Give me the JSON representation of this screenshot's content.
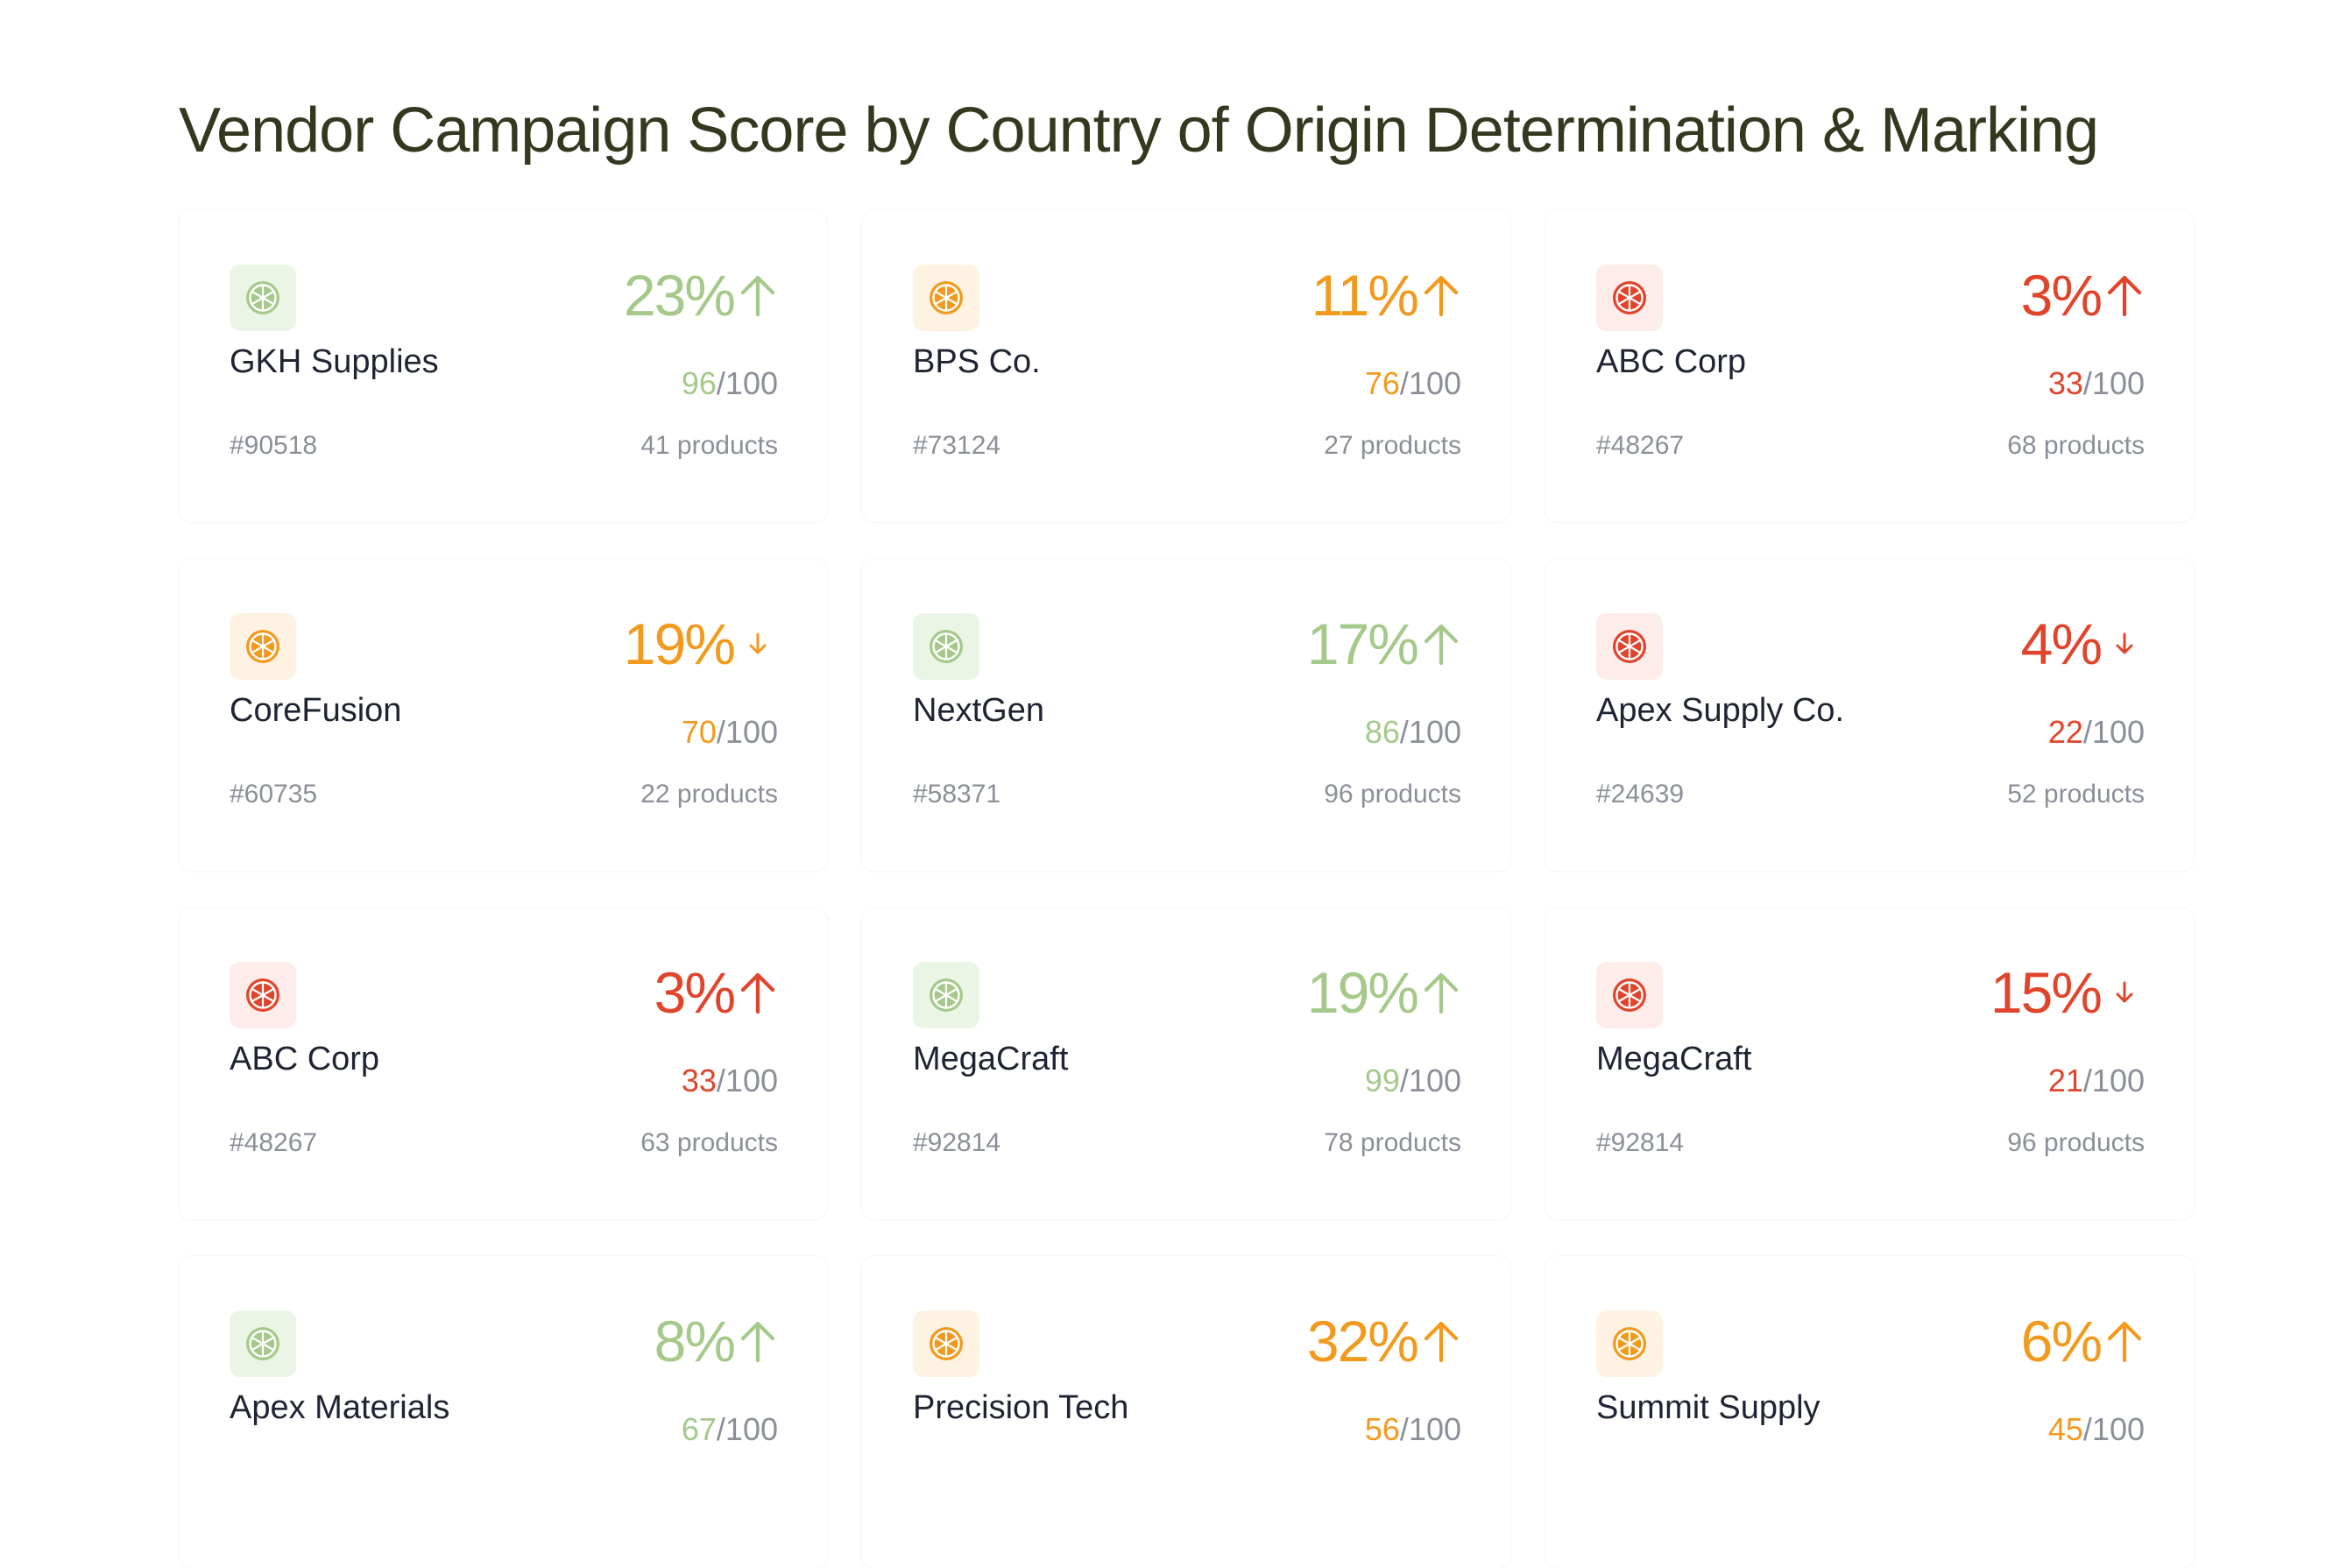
{
  "page": {
    "title": "Vendor Campaign Score by Country of Origin Determination & Marking"
  },
  "colors": {
    "good": "#a4c98a",
    "mid": "#f29a1e",
    "bad": "#e0452c",
    "good_bg": "#eaf5e6",
    "mid_bg": "#fef2e3",
    "bad_bg": "#fdecea"
  },
  "cards": [
    {
      "name": "GKH Supplies",
      "id": "#90518",
      "change": "23%",
      "trend": "up",
      "score": "96",
      "score_max": "/100",
      "products": "41 products",
      "tone": "good",
      "icon": "citrus-slice-icon"
    },
    {
      "name": "BPS Co.",
      "id": "#73124",
      "change": "11%",
      "trend": "up",
      "score": "76",
      "score_max": "/100",
      "products": "27 products",
      "tone": "mid",
      "icon": "citrus-slice-icon"
    },
    {
      "name": "ABC Corp",
      "id": "#48267",
      "change": "3%",
      "trend": "up",
      "score": "33",
      "score_max": "/100",
      "products": "68 products",
      "tone": "bad",
      "icon": "citrus-slice-icon"
    },
    {
      "name": "CoreFusion",
      "id": "#60735",
      "change": "19%",
      "trend": "down",
      "score": "70",
      "score_max": "/100",
      "products": "22 products",
      "tone": "mid",
      "icon": "citrus-slice-icon"
    },
    {
      "name": "NextGen",
      "id": "#58371",
      "change": "17%",
      "trend": "up",
      "score": "86",
      "score_max": "/100",
      "products": "96 products",
      "tone": "good",
      "icon": "citrus-slice-icon"
    },
    {
      "name": "Apex Supply Co.",
      "id": "#24639",
      "change": "4%",
      "trend": "down",
      "score": "22",
      "score_max": "/100",
      "products": "52 products",
      "tone": "bad",
      "icon": "citrus-slice-icon"
    },
    {
      "name": "ABC Corp",
      "id": "#48267",
      "change": "3%",
      "trend": "up",
      "score": "33",
      "score_max": "/100",
      "products": "63 products",
      "tone": "bad",
      "icon": "citrus-slice-icon"
    },
    {
      "name": "MegaCraft",
      "id": "#92814",
      "change": "19%",
      "trend": "up",
      "score": "99",
      "score_max": "/100",
      "products": "78 products",
      "tone": "good",
      "icon": "citrus-slice-icon"
    },
    {
      "name": "MegaCraft",
      "id": "#92814",
      "change": "15%",
      "trend": "down",
      "score": "21",
      "score_max": "/100",
      "products": "96 products",
      "tone": "bad",
      "icon": "citrus-slice-icon"
    },
    {
      "name": "Apex Materials",
      "id": "",
      "change": "8%",
      "trend": "up",
      "score": "67",
      "score_max": "/100",
      "products": "",
      "tone": "good",
      "icon": "citrus-slice-icon"
    },
    {
      "name": "Precision Tech",
      "id": "",
      "change": "32%",
      "trend": "up",
      "score": "56",
      "score_max": "/100",
      "products": "",
      "tone": "mid",
      "icon": "citrus-slice-icon"
    },
    {
      "name": "Summit Supply",
      "id": "",
      "change": "6%",
      "trend": "up",
      "score": "45",
      "score_max": "/100",
      "products": "",
      "tone": "mid",
      "icon": "citrus-slice-icon"
    }
  ]
}
